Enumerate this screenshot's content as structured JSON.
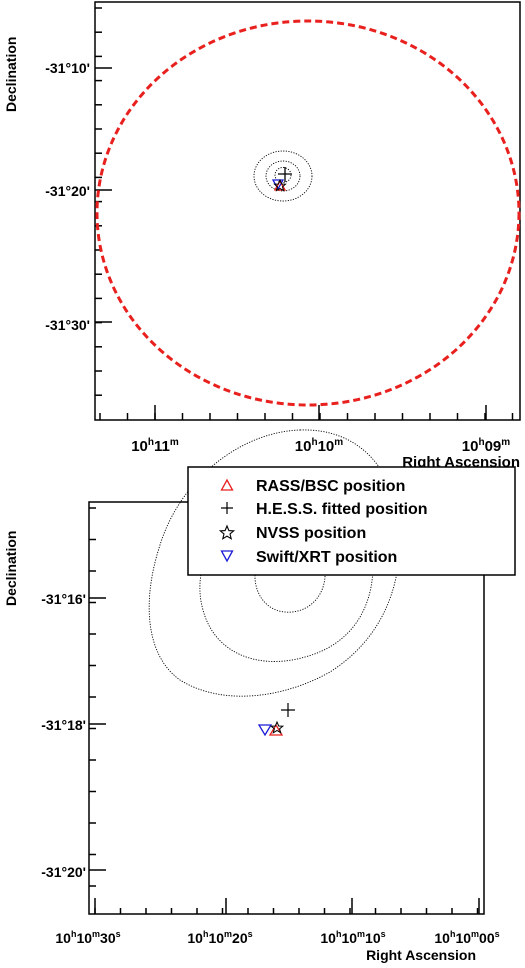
{
  "chart_data": [
    {
      "type": "scatter",
      "xlabel": "Right Ascension",
      "ylabel": "Declination",
      "x_ticks": [
        {
          "pre": "10",
          "h": "h",
          "mid": "11",
          "unit": "m",
          "tail": "",
          "tail_unit": ""
        },
        {
          "pre": "10",
          "h": "h",
          "mid": "10",
          "unit": "m",
          "tail": "",
          "tail_unit": ""
        },
        {
          "pre": "10",
          "h": "h",
          "mid": "09",
          "unit": "m",
          "tail": "",
          "tail_unit": ""
        }
      ],
      "y_ticks": [
        "-31°10'",
        "-31°20'",
        "-31°30'"
      ],
      "circle_color": "#e8201e",
      "series": [
        {
          "name": "RASS/BSC position",
          "marker": "triangle-up",
          "color": "#e8201e"
        },
        {
          "name": "H.E.S.S. fitted position",
          "marker": "plus",
          "color": "#000000"
        },
        {
          "name": "NVSS position",
          "marker": "star",
          "color": "#000000"
        },
        {
          "name": "Swift/XRT position",
          "marker": "triangle-down",
          "color": "#1a1ad8"
        }
      ],
      "contours": 3
    },
    {
      "type": "scatter",
      "xlabel": "Right Ascension",
      "ylabel": "Declination",
      "x_ticks": [
        {
          "pre": "10",
          "h": "h",
          "mid": "10",
          "unit": "m",
          "tail": "30",
          "tail_unit": "s"
        },
        {
          "pre": "10",
          "h": "h",
          "mid": "10",
          "unit": "m",
          "tail": "20",
          "tail_unit": "s"
        },
        {
          "pre": "10",
          "h": "h",
          "mid": "10",
          "unit": "m",
          "tail": "10",
          "tail_unit": "s"
        },
        {
          "pre": "10",
          "h": "h",
          "mid": "10",
          "unit": "m",
          "tail": "00",
          "tail_unit": "s"
        }
      ],
      "y_ticks": [
        "-31°16'",
        "-31°18'",
        "-31°20'"
      ],
      "legend": {
        "position": "top",
        "entries": [
          {
            "label": "RASS/BSC position",
            "marker": "triangle-up",
            "color": "#e8201e"
          },
          {
            "label": "H.E.S.S. fitted position",
            "marker": "plus",
            "color": "#000000"
          },
          {
            "label": "NVSS position",
            "marker": "star",
            "color": "#000000"
          },
          {
            "label": "Swift/XRT position",
            "marker": "triangle-down",
            "color": "#1a1ad8"
          }
        ]
      },
      "contours": 3
    }
  ]
}
